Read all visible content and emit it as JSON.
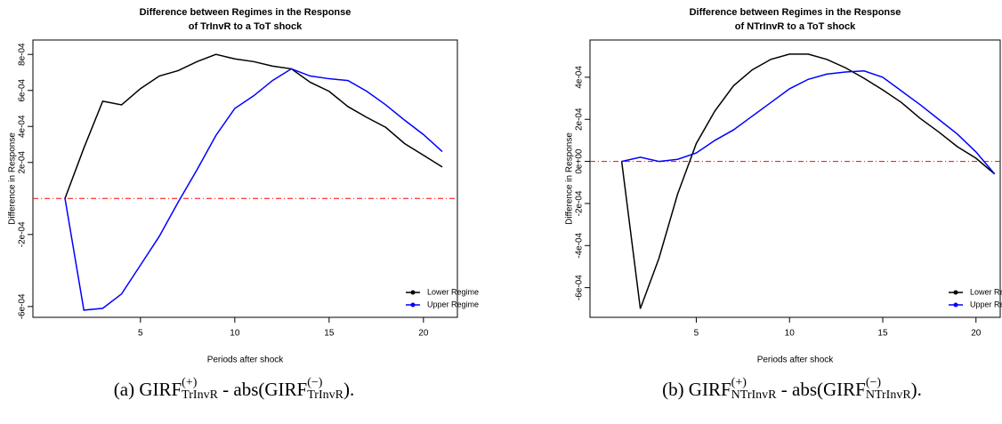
{
  "chart_data": [
    {
      "type": "line",
      "title": [
        "Difference between Regimes in the Response",
        "of TrInvR to a ToT shock"
      ],
      "x_label": "Periods after shock",
      "y_label": "Difference in Response",
      "x": [
        1,
        2,
        3,
        4,
        5,
        6,
        7,
        8,
        9,
        10,
        11,
        12,
        13,
        14,
        15,
        16,
        17,
        18,
        19,
        20,
        21
      ],
      "series": [
        {
          "name": "Lower Regime",
          "color": "#000000",
          "values": [
            0,
            0.00028,
            0.00054,
            0.00052,
            0.00061,
            0.00068,
            0.00071,
            0.00076,
            0.0008,
            0.000775,
            0.00076,
            0.000735,
            0.00072,
            0.000645,
            0.000595,
            0.00051,
            0.00045,
            0.000395,
            0.000305,
            0.00024,
            0.000175
          ]
        },
        {
          "name": "Upper Regime",
          "color": "#0000ff",
          "values": [
            0,
            -0.00062,
            -0.00061,
            -0.00053,
            -0.00037,
            -0.00021,
            -2e-05,
            0.00016,
            0.00035,
            0.0005,
            0.00057,
            0.000655,
            0.00072,
            0.00068,
            0.000665,
            0.000655,
            0.000595,
            0.00052,
            0.000435,
            0.000355,
            0.00026
          ]
        }
      ],
      "xlim": [
        -0.7,
        21.8
      ],
      "ylim": [
        -0.00066,
        0.00088
      ],
      "xticks": [
        5,
        10,
        15,
        20
      ],
      "yticks": [
        {
          "value": -0.0006,
          "label": "-6e-04"
        },
        {
          "value": -0.0002,
          "label": "-2e-04"
        },
        {
          "value": 0.0002,
          "label": "2e-04"
        },
        {
          "value": 0.0004,
          "label": "4e-04"
        },
        {
          "value": 0.0006,
          "label": "6e-04"
        },
        {
          "value": 0.0008,
          "label": "8e-04"
        }
      ],
      "hline": 0,
      "hline_color": "#ff0000",
      "legend": "bottom-right",
      "caption": {
        "prefix": "(a) GIRF",
        "sup": "(+)",
        "sub": "TrInvR",
        "mid": " - abs(GIRF",
        "sup2": "(−)",
        "sub2": "TrInvR",
        "suffix": ")."
      }
    },
    {
      "type": "line",
      "title": [
        "Difference between Regimes in the Response",
        "of NTrInvR to a ToT shock"
      ],
      "x_label": "Periods after shock",
      "y_label": "Difference in Response",
      "x": [
        1,
        2,
        3,
        4,
        5,
        6,
        7,
        8,
        9,
        10,
        11,
        12,
        13,
        14,
        15,
        16,
        17,
        18,
        19,
        20,
        21
      ],
      "series": [
        {
          "name": "Lower Regime",
          "color": "#000000",
          "values": [
            0,
            -0.0007,
            -0.00046,
            -0.000155,
            8.5e-05,
            0.00024,
            0.00036,
            0.000435,
            0.000485,
            0.00051,
            0.00051,
            0.000485,
            0.000445,
            0.000395,
            0.00034,
            0.00028,
            0.000205,
            0.00014,
            7e-05,
            1.5e-05,
            -6e-05
          ]
        },
        {
          "name": "Upper Regime",
          "color": "#0000ff",
          "values": [
            0,
            2e-05,
            0,
            1e-05,
            4e-05,
            0.0001,
            0.00015,
            0.000215,
            0.00028,
            0.000345,
            0.00039,
            0.000415,
            0.000425,
            0.00043,
            0.0004,
            0.000335,
            0.00027,
            0.0002,
            0.00013,
            4.5e-05,
            -6e-05
          ]
        }
      ],
      "xlim": [
        -0.7,
        21.3
      ],
      "ylim": [
        -0.000741,
        0.000577
      ],
      "xticks": [
        5,
        10,
        15,
        20
      ],
      "yticks": [
        {
          "value": -0.0006,
          "label": "-6e-04"
        },
        {
          "value": -0.0004,
          "label": "-4e-04"
        },
        {
          "value": -0.0002,
          "label": "-2e-04"
        },
        {
          "value": 0,
          "label": "0e+00"
        },
        {
          "value": 0.0002,
          "label": "2e-04"
        },
        {
          "value": 0.0004,
          "label": "4e-04"
        }
      ],
      "hline": 0,
      "hline_color": "#ff0000",
      "legend": "bottom-right",
      "caption": {
        "prefix": "(b) GIRF",
        "sup": "(+)",
        "sub": "NTrInvR",
        "mid": " - abs(GIRF",
        "sup2": "(−)",
        "sub2": "NTrInvR",
        "suffix": ")."
      }
    }
  ]
}
